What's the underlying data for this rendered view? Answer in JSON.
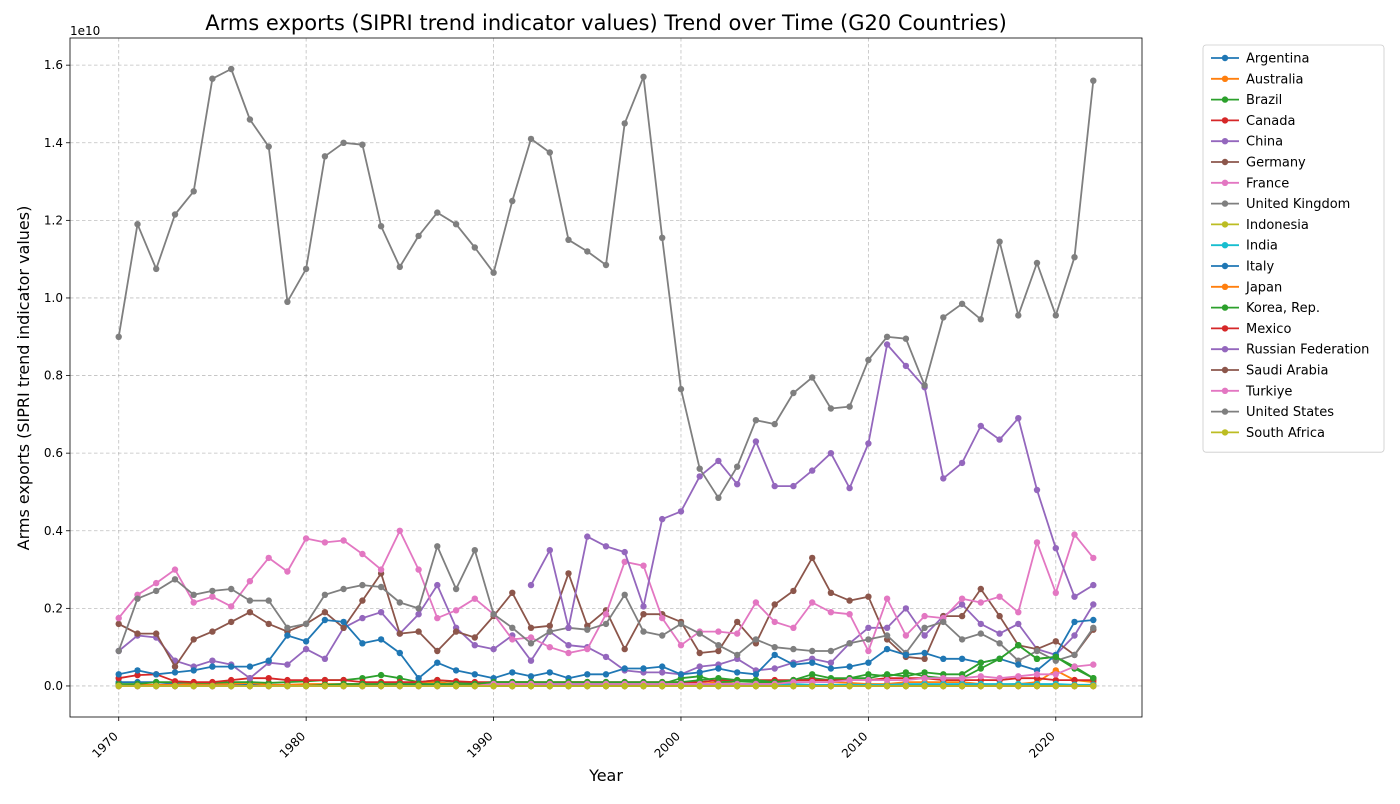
{
  "chart_data": {
    "type": "line",
    "title": "Arms exports (SIPRI trend indicator values) Trend over Time (G20 Countries)",
    "xlabel": "Year",
    "ylabel": "Arms exports (SIPRI trend indicator values)",
    "y_scale_label": "1e10",
    "xlim": [
      1967.4,
      2024.6
    ],
    "ylim": [
      -0.08,
      1.67
    ],
    "x_ticks": [
      1970,
      1980,
      1990,
      2000,
      2010,
      2020
    ],
    "x_tick_labels": [
      "1970",
      "1980",
      "1990",
      "2000",
      "2010",
      "2020"
    ],
    "y_ticks": [
      0.0,
      0.2,
      0.4,
      0.6,
      0.8,
      1.0,
      1.2,
      1.4,
      1.6
    ],
    "y_tick_labels": [
      "0.0",
      "0.2",
      "0.4",
      "0.6",
      "0.8",
      "1.0",
      "1.2",
      "1.4",
      "1.6"
    ],
    "grid": true,
    "legend_position": "outside-right-top",
    "start_year": 1970,
    "series": [
      {
        "name": "Argentina",
        "color": "#1f77b4",
        "values": [
          0.01,
          0.01,
          0.01,
          0.005,
          0.005,
          0.005,
          0.005,
          0.003,
          0.003,
          0.003,
          0.003,
          0.003,
          0.003,
          0.003,
          0.003,
          0.002,
          0.002,
          0.002,
          0.002,
          0.002,
          0.002,
          0.002,
          0.002,
          0.002,
          0.002,
          0.002,
          0.002,
          0.002,
          0.002,
          0.002,
          0.002,
          0.002,
          0.002,
          0.002,
          0.002,
          0.002,
          0.002,
          0.002,
          0.002,
          0.002,
          0.002,
          0.002,
          0.002,
          0.002,
          0.002,
          0.002,
          0.002,
          0.002,
          0.002,
          0.002,
          0.002,
          0.002,
          0.002
        ]
      },
      {
        "name": "Australia",
        "color": "#ff7f0e",
        "values": [
          0.0,
          0.003,
          0.003,
          0.003,
          0.005,
          0.005,
          0.005,
          0.008,
          0.003,
          0.003,
          0.005,
          0.005,
          0.005,
          0.005,
          0.005,
          0.005,
          0.008,
          0.01,
          0.005,
          0.003,
          0.005,
          0.005,
          0.005,
          0.008,
          0.01,
          0.01,
          0.008,
          0.005,
          0.005,
          0.005,
          0.005,
          0.005,
          0.01,
          0.005,
          0.005,
          0.008,
          0.01,
          0.01,
          0.01,
          0.008,
          0.005,
          0.005,
          0.01,
          0.01,
          0.01,
          0.01,
          0.005,
          0.003,
          0.005,
          0.01,
          0.04,
          0.015,
          0.01
        ]
      },
      {
        "name": "Brazil",
        "color": "#2ca02c",
        "values": [
          0.005,
          0.005,
          0.01,
          0.01,
          0.008,
          0.008,
          0.01,
          0.01,
          0.008,
          0.01,
          0.012,
          0.015,
          0.015,
          0.02,
          0.028,
          0.02,
          0.01,
          0.015,
          0.01,
          0.008,
          0.01,
          0.01,
          0.01,
          0.008,
          0.008,
          0.008,
          0.005,
          0.005,
          0.005,
          0.005,
          0.02,
          0.025,
          0.01,
          0.012,
          0.01,
          0.01,
          0.015,
          0.02,
          0.015,
          0.02,
          0.03,
          0.025,
          0.035,
          0.025,
          0.02,
          0.02,
          0.045,
          0.07,
          0.105,
          0.07,
          0.075,
          0.05,
          0.02
        ]
      },
      {
        "name": "Canada",
        "color": "#d62728",
        "values": [
          0.02,
          0.028,
          0.03,
          0.012,
          0.01,
          0.01,
          0.015,
          0.02,
          0.02,
          0.015,
          0.015,
          0.015,
          0.015,
          0.01,
          0.01,
          0.01,
          0.01,
          0.015,
          0.012,
          0.01,
          0.01,
          0.01,
          0.01,
          0.01,
          0.01,
          0.01,
          0.01,
          0.01,
          0.01,
          0.01,
          0.01,
          0.01,
          0.015,
          0.015,
          0.015,
          0.015,
          0.015,
          0.015,
          0.015,
          0.015,
          0.015,
          0.02,
          0.02,
          0.02,
          0.015,
          0.015,
          0.015,
          0.015,
          0.02,
          0.02,
          0.015,
          0.015,
          0.015
        ]
      },
      {
        "name": "China",
        "color": "#9467bd",
        "values": [
          0.09,
          0.13,
          0.125,
          0.065,
          0.05,
          0.065,
          0.055,
          0.02,
          0.06,
          0.055,
          0.095,
          0.07,
          0.15,
          0.175,
          0.19,
          0.135,
          0.185,
          0.26,
          0.15,
          0.105,
          0.095,
          0.13,
          0.065,
          0.14,
          0.105,
          0.1,
          0.075,
          0.04,
          0.035,
          0.035,
          0.03,
          0.05,
          0.055,
          0.07,
          0.04,
          0.045,
          0.06,
          0.07,
          0.06,
          0.11,
          0.15,
          0.15,
          0.2,
          0.13,
          0.18,
          0.21,
          0.16,
          0.135,
          0.16,
          0.095,
          0.08,
          0.13,
          0.21
        ]
      },
      {
        "name": "Germany",
        "color": "#8c564b",
        "values": [
          0.16,
          0.135,
          0.135,
          0.05,
          0.12,
          0.14,
          0.165,
          0.19,
          0.16,
          0.14,
          0.16,
          0.19,
          0.15,
          0.22,
          0.29,
          0.135,
          0.14,
          0.09,
          0.14,
          0.125,
          0.18,
          0.24,
          0.15,
          0.155,
          0.29,
          0.155,
          0.195,
          0.095,
          0.185,
          0.185,
          0.165,
          0.085,
          0.09,
          0.165,
          0.11,
          0.21,
          0.245,
          0.33,
          0.24,
          0.22,
          0.23,
          0.12,
          0.075,
          0.07,
          0.18,
          0.18,
          0.25,
          0.18,
          0.105,
          0.095,
          0.115,
          0.08,
          0.145
        ]
      },
      {
        "name": "France",
        "color": "#e377c2",
        "values": [
          0.175,
          0.235,
          0.265,
          0.3,
          0.215,
          0.23,
          0.205,
          0.27,
          0.33,
          0.295,
          0.38,
          0.37,
          0.375,
          0.34,
          0.3,
          0.4,
          0.3,
          0.175,
          0.195,
          0.225,
          0.185,
          0.12,
          0.125,
          0.1,
          0.085,
          0.095,
          0.185,
          0.32,
          0.31,
          0.175,
          0.105,
          0.14,
          0.14,
          0.135,
          0.215,
          0.165,
          0.15,
          0.215,
          0.19,
          0.185,
          0.09,
          0.225,
          0.13,
          0.18,
          0.175,
          0.225,
          0.215,
          0.23,
          0.19,
          0.37,
          0.24,
          0.39,
          0.33
        ]
      },
      {
        "name": "United Kingdom",
        "color": "#7f7f7f",
        "values": [
          0.09,
          0.225,
          0.245,
          0.275,
          0.235,
          0.245,
          0.25,
          0.22,
          0.22,
          0.15,
          0.16,
          0.235,
          0.25,
          0.26,
          0.255,
          0.215,
          0.2,
          0.36,
          0.25,
          0.35,
          0.185,
          0.15,
          0.11,
          0.14,
          0.15,
          0.145,
          0.16,
          0.235,
          0.14,
          0.13,
          0.16,
          0.135,
          0.105,
          0.08,
          0.12,
          0.1,
          0.095,
          0.09,
          0.09,
          0.11,
          0.12,
          0.13,
          0.085,
          0.15,
          0.165,
          0.12,
          0.135,
          0.11,
          0.065,
          0.09,
          0.065,
          0.08,
          0.15
        ]
      },
      {
        "name": "Indonesia",
        "color": "#bcbd22",
        "values": [
          0.0,
          0.0,
          0.0,
          0.0,
          0.0,
          0.0,
          0.0,
          0.0,
          0.0,
          0.0,
          0.0,
          0.0,
          0.0,
          0.0,
          0.0,
          0.0,
          0.0,
          0.0,
          0.0,
          0.0,
          0.0,
          0.0,
          0.0,
          0.0,
          0.0,
          0.0,
          0.0,
          0.0,
          0.0,
          0.0,
          0.0,
          0.0,
          0.0,
          0.0,
          0.0,
          0.0,
          0.0,
          0.0,
          0.0,
          0.0,
          0.0,
          0.0,
          0.0,
          0.0,
          0.0,
          0.0,
          0.0,
          0.0,
          0.0,
          0.0,
          0.0,
          0.0,
          0.0
        ]
      },
      {
        "name": "India",
        "color": "#17becf",
        "values": [
          0.0,
          0.0,
          0.0,
          0.0,
          0.0,
          0.0,
          0.0,
          0.0,
          0.0,
          0.0,
          0.0,
          0.0,
          0.0,
          0.0,
          0.0,
          0.0,
          0.0,
          0.0,
          0.0,
          0.0,
          0.0,
          0.0,
          0.0,
          0.0,
          0.0,
          0.0,
          0.0,
          0.0,
          0.0,
          0.0,
          0.0,
          0.0,
          0.0,
          0.0,
          0.003,
          0.003,
          0.005,
          0.003,
          0.003,
          0.003,
          0.003,
          0.003,
          0.005,
          0.005,
          0.005,
          0.005,
          0.005,
          0.005,
          0.005,
          0.005,
          0.005,
          0.003,
          0.003
        ]
      },
      {
        "name": "Italy",
        "color": "#1f77b4",
        "values": [
          0.03,
          0.04,
          0.03,
          0.035,
          0.04,
          0.05,
          0.05,
          0.05,
          0.065,
          0.13,
          0.115,
          0.17,
          0.165,
          0.11,
          0.12,
          0.085,
          0.02,
          0.06,
          0.04,
          0.03,
          0.02,
          0.035,
          0.025,
          0.035,
          0.02,
          0.03,
          0.03,
          0.045,
          0.045,
          0.05,
          0.03,
          0.035,
          0.045,
          0.035,
          0.03,
          0.08,
          0.055,
          0.06,
          0.045,
          0.05,
          0.06,
          0.095,
          0.08,
          0.085,
          0.07,
          0.07,
          0.06,
          0.07,
          0.055,
          0.04,
          0.08,
          0.165,
          0.17
        ]
      },
      {
        "name": "Japan",
        "color": "#ff7f0e",
        "values": [
          0.0,
          0.0,
          0.0,
          0.0,
          0.0,
          0.0,
          0.0,
          0.0,
          0.0,
          0.0,
          0.0,
          0.0,
          0.0,
          0.0,
          0.0,
          0.0,
          0.0,
          0.0,
          0.0,
          0.0,
          0.0,
          0.0,
          0.0,
          0.0,
          0.0,
          0.0,
          0.0,
          0.0,
          0.0,
          0.0,
          0.0,
          0.0,
          0.0,
          0.0,
          0.0,
          0.0,
          0.0,
          0.0,
          0.0,
          0.0,
          0.0,
          0.0,
          0.0,
          0.0,
          0.0,
          0.0,
          0.0,
          0.0,
          0.0,
          0.0,
          0.0,
          0.0,
          0.0
        ]
      },
      {
        "name": "Korea, Rep.",
        "color": "#2ca02c",
        "values": [
          0.0,
          0.0,
          0.0,
          0.0,
          0.0,
          0.0,
          0.0,
          0.0,
          0.0,
          0.0,
          0.0,
          0.003,
          0.005,
          0.005,
          0.005,
          0.005,
          0.005,
          0.005,
          0.005,
          0.005,
          0.01,
          0.01,
          0.01,
          0.01,
          0.01,
          0.01,
          0.01,
          0.01,
          0.01,
          0.01,
          0.01,
          0.015,
          0.02,
          0.015,
          0.015,
          0.01,
          0.015,
          0.03,
          0.02,
          0.02,
          0.02,
          0.03,
          0.025,
          0.035,
          0.03,
          0.03,
          0.06,
          0.07,
          0.105,
          0.07,
          0.075,
          0.045,
          0.02
        ]
      },
      {
        "name": "Mexico",
        "color": "#d62728",
        "values": [
          0.0,
          0.0,
          0.0,
          0.0,
          0.0,
          0.0,
          0.0,
          0.0,
          0.0,
          0.0,
          0.0,
          0.0,
          0.0,
          0.0,
          0.0,
          0.0,
          0.0,
          0.0,
          0.0,
          0.0,
          0.0,
          0.0,
          0.0,
          0.0,
          0.0,
          0.0,
          0.0,
          0.0,
          0.0,
          0.0,
          0.0,
          0.0,
          0.0,
          0.0,
          0.0,
          0.0,
          0.0,
          0.0,
          0.0,
          0.0,
          0.0,
          0.0,
          0.0,
          0.0,
          0.0,
          0.0,
          0.0,
          0.0,
          0.0,
          0.0,
          0.0,
          0.0,
          0.0
        ]
      },
      {
        "name": "Russian Federation",
        "color": "#9467bd",
        "values": [
          null,
          null,
          null,
          null,
          null,
          null,
          null,
          null,
          null,
          null,
          null,
          null,
          null,
          null,
          null,
          null,
          null,
          null,
          null,
          null,
          null,
          null,
          0.26,
          0.35,
          0.15,
          0.385,
          0.36,
          0.345,
          0.205,
          0.43,
          0.45,
          0.54,
          0.58,
          0.52,
          0.63,
          0.515,
          0.515,
          0.555,
          0.6,
          0.51,
          0.625,
          0.88,
          0.825,
          0.77,
          0.535,
          0.575,
          0.67,
          0.635,
          0.69,
          0.505,
          0.355,
          0.23,
          0.26
        ]
      },
      {
        "name": "Saudi Arabia",
        "color": "#8c564b",
        "values": [
          0.0,
          0.0,
          0.0,
          0.0,
          0.0,
          0.0,
          0.0,
          0.0,
          0.0,
          0.0,
          0.0,
          0.0,
          0.0,
          0.0,
          0.0,
          0.0,
          0.0,
          0.0,
          0.0,
          0.0,
          0.0,
          0.0,
          0.0,
          0.0,
          0.0,
          0.0,
          0.0,
          0.0,
          0.0,
          0.0,
          0.0,
          0.0,
          0.0,
          0.0,
          0.0,
          0.0,
          0.0,
          0.0,
          0.0,
          0.0,
          0.0,
          0.0,
          0.0,
          0.0,
          0.0,
          0.0,
          0.0,
          0.0,
          0.0,
          0.0,
          0.0,
          0.0,
          0.0
        ]
      },
      {
        "name": "Turkiye",
        "color": "#e377c2",
        "values": [
          0.0,
          0.0,
          0.0,
          0.0,
          0.0,
          0.0,
          0.0,
          0.0,
          0.0,
          0.0,
          0.0,
          0.0,
          0.0,
          0.0,
          0.0,
          0.0,
          0.0,
          0.0,
          0.0,
          0.0,
          0.005,
          0.005,
          0.005,
          0.005,
          0.005,
          0.005,
          0.005,
          0.005,
          0.005,
          0.005,
          0.005,
          0.005,
          0.005,
          0.005,
          0.005,
          0.005,
          0.01,
          0.01,
          0.01,
          0.015,
          0.015,
          0.015,
          0.015,
          0.02,
          0.02,
          0.02,
          0.025,
          0.02,
          0.025,
          0.03,
          0.03,
          0.05,
          0.055
        ]
      },
      {
        "name": "United States",
        "color": "#7f7f7f",
        "values": [
          0.9,
          1.19,
          1.075,
          1.215,
          1.275,
          1.565,
          1.59,
          1.46,
          1.39,
          0.99,
          1.075,
          1.365,
          1.4,
          1.395,
          1.185,
          1.08,
          1.16,
          1.22,
          1.19,
          1.13,
          1.065,
          1.25,
          1.41,
          1.375,
          1.15,
          1.12,
          1.085,
          1.45,
          1.57,
          1.155,
          0.765,
          0.56,
          0.485,
          0.565,
          0.685,
          0.675,
          0.755,
          0.795,
          0.715,
          0.72,
          0.84,
          0.9,
          0.895,
          0.775,
          0.95,
          0.985,
          0.945,
          1.145,
          0.955,
          1.09,
          0.955,
          1.105,
          1.56
        ]
      },
      {
        "name": "South Africa",
        "color": "#bcbd22",
        "values": [
          0.0,
          0.0,
          0.0,
          0.0,
          0.0,
          0.0,
          0.0,
          0.0,
          0.0,
          0.0,
          0.0,
          0.0,
          0.0,
          0.0,
          0.0,
          0.0,
          0.0,
          0.0,
          0.0,
          0.0,
          0.0,
          0.0,
          0.0,
          0.0,
          0.0,
          0.0,
          0.0,
          0.0,
          0.0,
          0.0,
          0.0,
          0.0,
          0.0,
          0.0,
          0.0,
          0.0,
          0.0,
          0.0,
          0.0,
          0.0,
          0.0,
          0.0,
          0.0,
          0.0,
          0.0,
          0.0,
          0.0,
          0.0,
          0.0,
          0.0,
          0.0,
          0.0,
          0.0
        ]
      }
    ]
  }
}
